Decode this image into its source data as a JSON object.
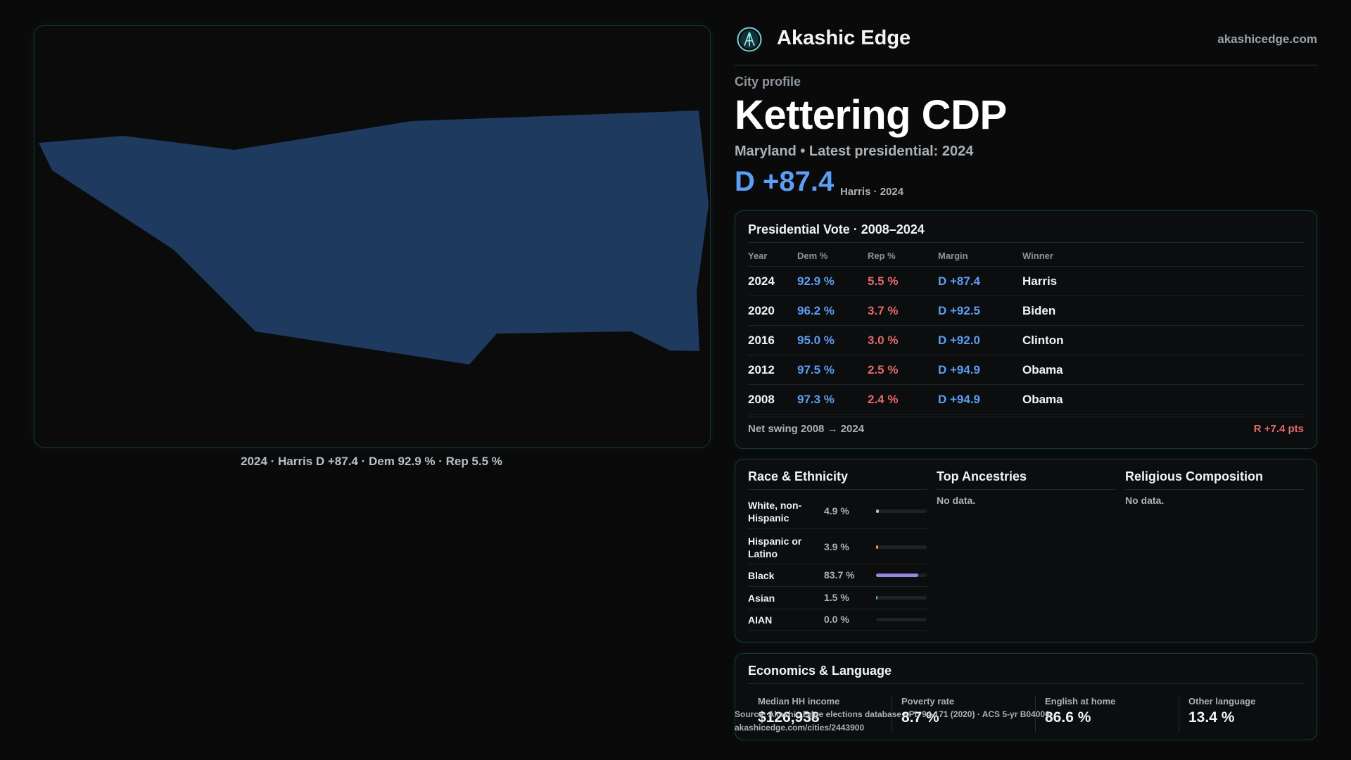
{
  "brand": {
    "name": "Akashic Edge",
    "url": "akashicedge.com",
    "logo_icon": "akashic-logo-icon"
  },
  "profile": {
    "eyebrow": "City profile",
    "title": "Kettering CDP",
    "subtitle": "Maryland • Latest presidential: 2024",
    "margin": "D +87.4",
    "margin_note": "Harris · 2024"
  },
  "map": {
    "caption": "2024 · Harris D +87.4 · Dem 92.9 % · Rep 5.5 %",
    "fill_color": "#1f3a5f"
  },
  "vote": {
    "title": "Presidential Vote · 2008–2024",
    "headers": {
      "year": "Year",
      "dem": "Dem %",
      "rep": "Rep %",
      "margin": "Margin",
      "winner": "Winner"
    },
    "rows": [
      {
        "year": "2024",
        "dem": "92.9 %",
        "rep": "5.5 %",
        "margin": "D +87.4",
        "winner": "Harris"
      },
      {
        "year": "2020",
        "dem": "96.2 %",
        "rep": "3.7 %",
        "margin": "D +92.5",
        "winner": "Biden"
      },
      {
        "year": "2016",
        "dem": "95.0 %",
        "rep": "3.0 %",
        "margin": "D +92.0",
        "winner": "Clinton"
      },
      {
        "year": "2012",
        "dem": "97.5 %",
        "rep": "2.5 %",
        "margin": "D +94.9",
        "winner": "Obama"
      },
      {
        "year": "2008",
        "dem": "97.3 %",
        "rep": "2.4 %",
        "margin": "D +94.9",
        "winner": "Obama"
      }
    ],
    "swing_label": "Net swing 2008 → 2024",
    "swing_value": "R +7.4 pts"
  },
  "race": {
    "title": "Race & Ethnicity",
    "rows": [
      {
        "label": "White, non-Hispanic",
        "pct": "4.9 %",
        "share": 0.049,
        "color": "#b8bcc0"
      },
      {
        "label": "Hispanic or Latino",
        "pct": "3.9 %",
        "share": 0.039,
        "color": "#e0a040"
      },
      {
        "label": "Black",
        "pct": "83.7 %",
        "share": 0.837,
        "color": "#9a86e0"
      },
      {
        "label": "Asian",
        "pct": "1.5 %",
        "share": 0.015,
        "color": "#3fc28a"
      },
      {
        "label": "AIAN",
        "pct": "0.0 %",
        "share": 0.0,
        "color": "#b8bcc0"
      }
    ]
  },
  "ancestries": {
    "title": "Top Ancestries",
    "empty": "No data."
  },
  "religion": {
    "title": "Religious Composition",
    "empty": "No data."
  },
  "economics": {
    "title": "Economics & Language",
    "stats": [
      {
        "label": "Median HH income",
        "value": "$126,938"
      },
      {
        "label": "Poverty rate",
        "value": "8.7 %"
      },
      {
        "label": "English at home",
        "value": "86.6 %"
      },
      {
        "label": "Other language",
        "value": "13.4 %"
      }
    ]
  },
  "source": {
    "line1": "Source: Akashic Edge elections database · PL 94-171 (2020) · ACS 5-yr B04006",
    "line2": "akashicedge.com/cities/2443900"
  }
}
